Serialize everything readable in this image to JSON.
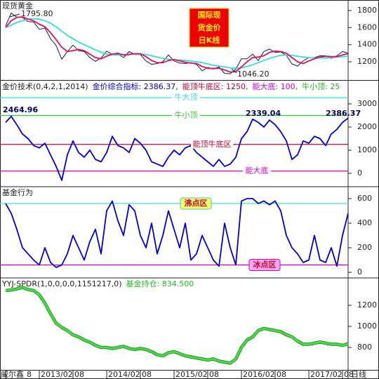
{
  "chart_data": [
    {
      "type": "line",
      "title": "现货黄金",
      "ylim": [
        995,
        1882
      ],
      "yticks": [
        1200,
        1400,
        1600,
        1800
      ],
      "box_text": [
        "国际现",
        "货金价",
        "日K线"
      ],
      "annotations": [
        "1795.80",
        "1046.20"
      ],
      "series": [
        {
          "color": "#1a1a40",
          "values": [
            1620,
            1770,
            1720,
            1720,
            1670,
            1665,
            1580,
            1595,
            1470,
            1390,
            1230,
            1320,
            1395,
            1330,
            1320,
            1250,
            1205,
            1245,
            1325,
            1285,
            1290,
            1250,
            1320,
            1285,
            1285,
            1210,
            1170,
            1180,
            1200,
            1280,
            1210,
            1185,
            1180,
            1190,
            1170,
            1095,
            1135,
            1115,
            1140,
            1065,
            1060,
            1115,
            1235,
            1235,
            1290,
            1215,
            1320,
            1350,
            1310,
            1315,
            1275,
            1175,
            1150,
            1210,
            1250,
            1250,
            1270,
            1270,
            1240,
            1270,
            1320,
            1300
          ]
        },
        {
          "color": "#33dddd",
          "values": [
            1600,
            1630,
            1660,
            1680,
            1700,
            1705,
            1700,
            1680,
            1650,
            1610,
            1560,
            1510,
            1470,
            1430,
            1400,
            1370,
            1340,
            1310,
            1290,
            1280,
            1280,
            1285,
            1290,
            1290,
            1290,
            1285,
            1270,
            1255,
            1240,
            1230,
            1225,
            1220,
            1215,
            1210,
            1200,
            1190,
            1175,
            1160,
            1150,
            1140,
            1130,
            1125,
            1130,
            1145,
            1165,
            1190,
            1215,
            1240,
            1260,
            1275,
            1280,
            1275,
            1265,
            1255,
            1250,
            1245,
            1245,
            1245,
            1250,
            1255,
            1260,
            1265
          ]
        },
        {
          "color": "#e0105a",
          "values": [
            1600,
            1680,
            1720,
            1725,
            1700,
            1680,
            1640,
            1610,
            1540,
            1460,
            1370,
            1320,
            1330,
            1345,
            1330,
            1290,
            1250,
            1235,
            1265,
            1290,
            1300,
            1280,
            1285,
            1295,
            1295,
            1260,
            1215,
            1190,
            1190,
            1215,
            1225,
            1210,
            1195,
            1185,
            1180,
            1145,
            1125,
            1120,
            1125,
            1105,
            1080,
            1085,
            1140,
            1200,
            1250,
            1255,
            1270,
            1310,
            1325,
            1320,
            1300,
            1250,
            1200,
            1180,
            1210,
            1235,
            1255,
            1265,
            1260,
            1260,
            1280,
            1295
          ]
        }
      ]
    },
    {
      "type": "line",
      "title": "金价技术(0,4,2,1,2014)",
      "ylim": [
        -545,
        3970
      ],
      "yticks": [
        0,
        1000,
        2000,
        3000
      ],
      "legend": [
        {
          "text": "金价综合指标: 2386.37,",
          "color": "#0000cc"
        },
        {
          "text": "能顶牛底区: 1250,",
          "color": "#d00030"
        },
        {
          "text": "能大底: 100,",
          "color": "#cc00cc"
        },
        {
          "text": "牛小顶: 25",
          "color": "#22aa22"
        }
      ],
      "annotations": [
        "2464.96",
        "2339.04",
        "2386.37"
      ],
      "reference_lines": [
        {
          "label": "牛大顶",
          "value": 3270,
          "color": "#33dddd"
        },
        {
          "label": "牛小顶",
          "value": 2500,
          "color": "#33cc33"
        },
        {
          "label": "能顶牛底区",
          "value": 1250,
          "color": "#d00030"
        },
        {
          "label": "能大底",
          "value": 100,
          "color": "#cc00cc"
        }
      ],
      "series": [
        {
          "color": "#0000cc",
          "values": [
            2200,
            2465,
            2100,
            1700,
            1500,
            1200,
            1100,
            1300,
            800,
            300,
            -300,
            800,
            1400,
            900,
            700,
            1000,
            600,
            500,
            900,
            1600,
            1200,
            1100,
            900,
            1500,
            1300,
            1000,
            500,
            400,
            300,
            700,
            1000,
            800,
            1100,
            1200,
            900,
            700,
            500,
            300,
            600,
            300,
            400,
            700,
            1500,
            1800,
            2339,
            2200,
            2000,
            2300,
            2100,
            1800,
            1400,
            600,
            800,
            1400,
            1300,
            1600,
            1500,
            1200,
            1700,
            1900,
            2200,
            2386
          ]
        }
      ]
    },
    {
      "type": "line",
      "title": "基金行为",
      "ylim": [
        -40,
        691
      ],
      "yticks": [
        0,
        200,
        400,
        600
      ],
      "reference_lines": [
        {
          "label": "沸点区",
          "value": 560,
          "color": "#33dddd"
        },
        {
          "label": "冰点区",
          "value": 60,
          "color": "#cc00cc"
        }
      ],
      "series": [
        {
          "color": "#0000cc",
          "values": [
            560,
            480,
            350,
            200,
            150,
            100,
            60,
            200,
            80,
            40,
            60,
            150,
            300,
            200,
            100,
            250,
            350,
            150,
            500,
            580,
            420,
            300,
            550,
            500,
            300,
            200,
            400,
            150,
            300,
            500,
            350,
            200,
            400,
            100,
            150,
            300,
            200,
            100,
            50,
            400,
            200,
            60,
            580,
            600,
            600,
            560,
            580,
            550,
            580,
            500,
            300,
            200,
            150,
            80,
            100,
            300,
            100,
            80,
            200,
            50,
            300,
            480
          ]
        }
      ]
    },
    {
      "type": "line",
      "title": "YYJ-SPDR(1,0,0,0,0,1151217,0)",
      "legend": [
        {
          "text": "基金持仓: 834.500",
          "color": "#22bb22"
        }
      ],
      "ylim": [
        587,
        1453
      ],
      "yticks": [
        800,
        1000,
        1200
      ],
      "xlim": [
        -1,
        61
      ],
      "xticks": [
        {
          "value": 0,
          "label": "8"
        },
        {
          "value": 6,
          "label": "2013/02"
        },
        {
          "value": 12,
          "label": "08"
        },
        {
          "value": 18,
          "label": "2014/02"
        },
        {
          "value": 24,
          "label": "08"
        },
        {
          "value": 30,
          "label": "2015/02"
        },
        {
          "value": 36,
          "label": "08"
        },
        {
          "value": 42,
          "label": "2016/02"
        },
        {
          "value": 48,
          "label": "08"
        },
        {
          "value": 54,
          "label": "2017/02"
        },
        {
          "value": 60,
          "label": "08"
        }
      ],
      "x_label_left": "威尔鑫",
      "x_label_right": "日线",
      "series": [
        {
          "color": "#44dd44",
          "values": [
            1340,
            1345,
            1355,
            1370,
            1350,
            1340,
            1300,
            1220,
            1120,
            1030,
            990,
            960,
            920,
            900,
            870,
            850,
            820,
            800,
            800,
            790,
            800,
            810,
            790,
            780,
            790,
            780,
            760,
            730,
            720,
            750,
            760,
            740,
            720,
            710,
            700,
            690,
            680,
            690,
            670,
            660,
            650,
            690,
            800,
            870,
            900,
            960,
            980,
            970,
            960,
            950,
            920,
            900,
            860,
            830,
            830,
            840,
            850,
            840,
            830,
            830,
            820,
            834.5
          ]
        }
      ]
    }
  ]
}
